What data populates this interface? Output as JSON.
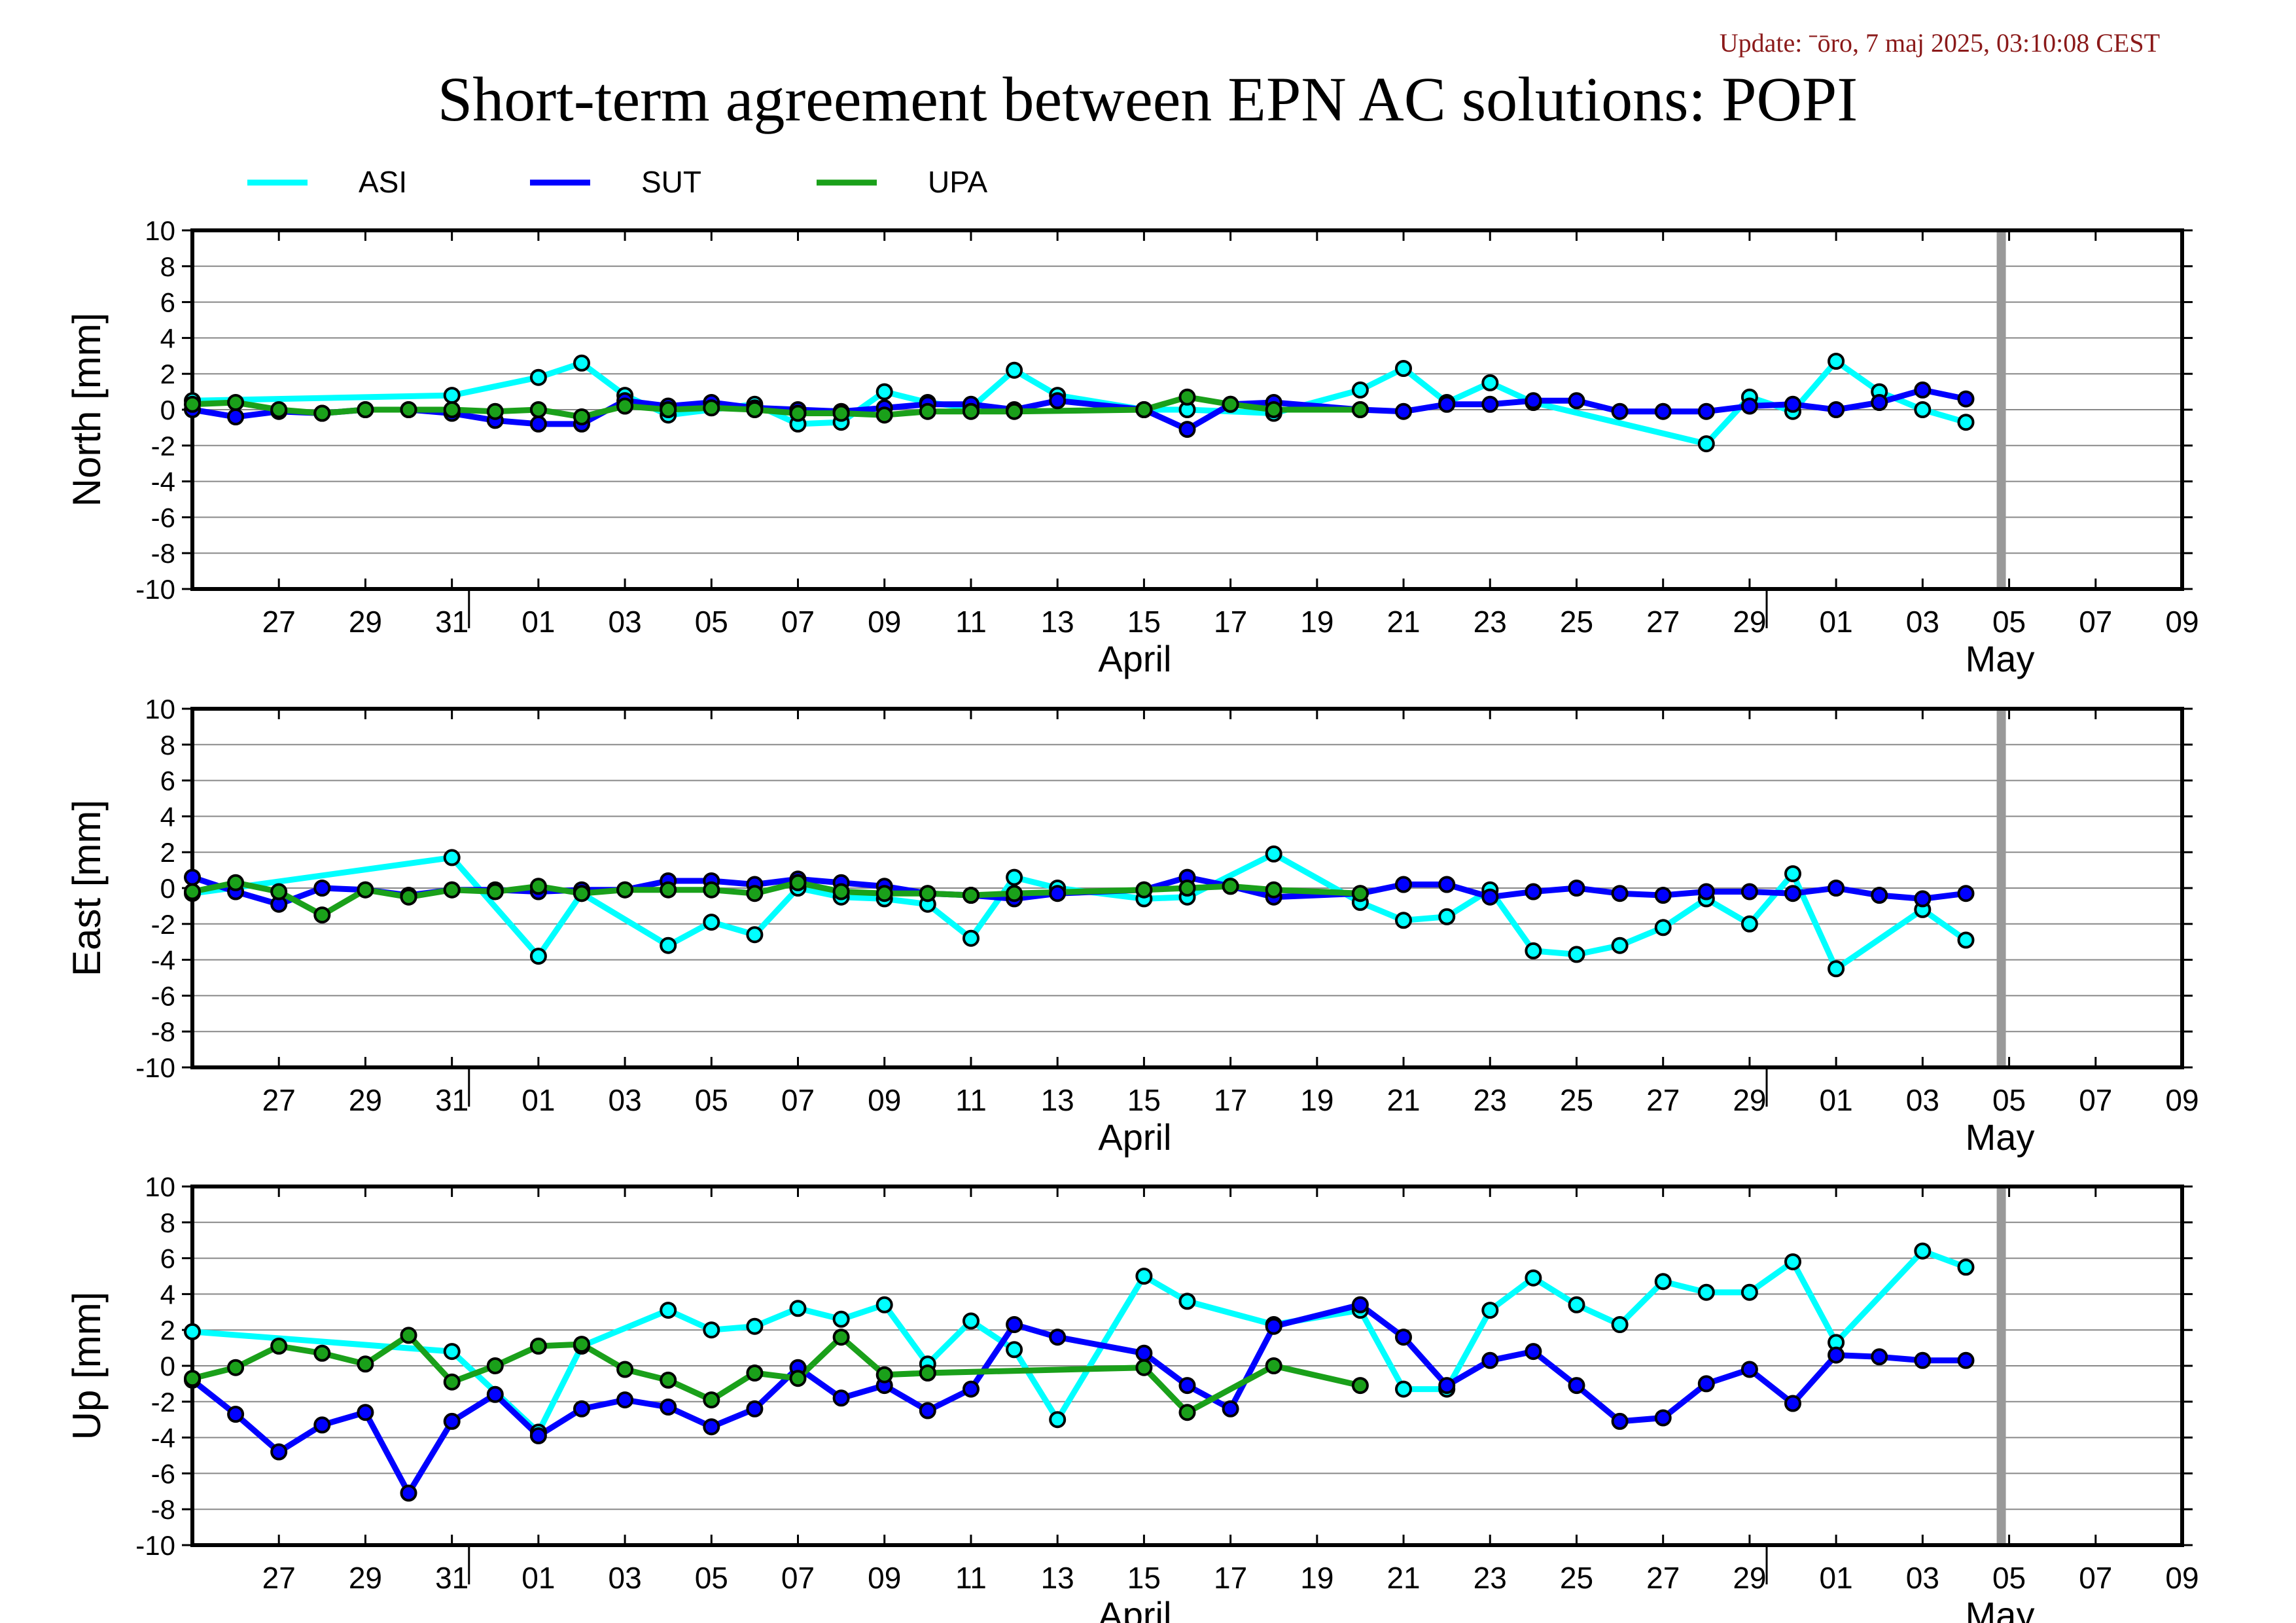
{
  "update_text": "Update: ˉōro, 7 maj 2025, 03:10:08 CEST",
  "colors": {
    "update_text": "#8b1a1a",
    "ASI": "#00ffff",
    "SUT": "#0000ff",
    "UPA": "#1aa01a",
    "axis": "#000000",
    "grid": "#888888",
    "current_day_bar": "#999999",
    "marker_edge": "#000000"
  },
  "chart_data": {
    "type": "line",
    "title": "Short-term agreement between EPN AC solutions: POPI",
    "legend": [
      "ASI",
      "SUT",
      "UPA"
    ],
    "legend_placement": "top-left",
    "grid": true,
    "x_range": [
      "2025-03-25",
      "2025-05-10"
    ],
    "current_day_marker": "2025-05-06",
    "x_tick_labels": [
      "27",
      "29",
      "31",
      "01",
      "03",
      "05",
      "07",
      "09",
      "11",
      "13",
      "15",
      "17",
      "19",
      "21",
      "23",
      "25",
      "27",
      "29",
      "01",
      "03",
      "05",
      "07",
      "09"
    ],
    "x_month_labels": [
      {
        "label": "April",
        "date": "2025-04-16"
      },
      {
        "label": "May",
        "date": "2025-05-06"
      }
    ],
    "panels": [
      {
        "name": "north",
        "ylabel": "North [mm]",
        "ylim": [
          -10,
          10
        ],
        "yticks": [
          10,
          8,
          6,
          4,
          2,
          0,
          -2,
          -4,
          -6,
          -8,
          -10
        ],
        "series": [
          {
            "name": "ASI",
            "x": [
              "2025-03-25",
              "2025-03-31",
              "2025-04-02",
              "2025-04-03",
              "2025-04-04",
              "2025-04-05",
              "2025-04-07",
              "2025-04-08",
              "2025-04-09",
              "2025-04-10",
              "2025-04-11",
              "2025-04-12",
              "2025-04-13",
              "2025-04-14",
              "2025-04-16",
              "2025-04-17",
              "2025-04-19",
              "2025-04-21",
              "2025-04-22",
              "2025-04-23",
              "2025-04-24",
              "2025-04-25",
              "2025-04-29",
              "2025-04-30",
              "2025-05-01",
              "2025-05-02",
              "2025-05-03",
              "2025-05-04",
              "2025-05-05"
            ],
            "y": [
              0.5,
              0.8,
              1.8,
              2.6,
              0.8,
              -0.3,
              0.3,
              -0.8,
              -0.7,
              1.0,
              0.4,
              0.1,
              2.2,
              0.8,
              0.0,
              0.0,
              -0.2,
              1.1,
              2.3,
              0.4,
              1.5,
              0.4,
              -1.9,
              0.7,
              -0.1,
              2.7,
              1.0,
              0.0,
              -0.7
            ]
          },
          {
            "name": "SUT",
            "x": [
              "2025-03-25",
              "2025-03-26",
              "2025-03-27",
              "2025-03-28",
              "2025-03-29",
              "2025-03-30",
              "2025-03-31",
              "2025-04-01",
              "2025-04-02",
              "2025-04-03",
              "2025-04-04",
              "2025-04-05",
              "2025-04-06",
              "2025-04-07",
              "2025-04-08",
              "2025-04-09",
              "2025-04-10",
              "2025-04-11",
              "2025-04-12",
              "2025-04-13",
              "2025-04-14",
              "2025-04-16",
              "2025-04-17",
              "2025-04-18",
              "2025-04-19",
              "2025-04-21",
              "2025-04-22",
              "2025-04-23",
              "2025-04-24",
              "2025-04-25",
              "2025-04-26",
              "2025-04-27",
              "2025-04-28",
              "2025-04-29",
              "2025-04-30",
              "2025-05-01",
              "2025-05-02",
              "2025-05-03",
              "2025-05-04",
              "2025-05-05"
            ],
            "y": [
              0.0,
              -0.4,
              -0.1,
              -0.2,
              0.0,
              0.0,
              -0.2,
              -0.6,
              -0.8,
              -0.8,
              0.5,
              0.2,
              0.4,
              0.1,
              0.0,
              -0.1,
              0.1,
              0.3,
              0.3,
              0.0,
              0.5,
              0.0,
              -1.1,
              0.3,
              0.4,
              0.0,
              -0.1,
              0.3,
              0.3,
              0.5,
              0.5,
              -0.1,
              -0.1,
              -0.1,
              0.2,
              0.3,
              0.0,
              0.4,
              1.1,
              0.6
            ]
          },
          {
            "name": "UPA",
            "x": [
              "2025-03-25",
              "2025-03-26",
              "2025-03-27",
              "2025-03-28",
              "2025-03-29",
              "2025-03-30",
              "2025-03-31",
              "2025-04-01",
              "2025-04-02",
              "2025-04-03",
              "2025-04-04",
              "2025-04-05",
              "2025-04-06",
              "2025-04-07",
              "2025-04-08",
              "2025-04-09",
              "2025-04-10",
              "2025-04-11",
              "2025-04-12",
              "2025-04-13",
              "2025-04-16",
              "2025-04-17",
              "2025-04-18",
              "2025-04-19",
              "2025-04-21"
            ],
            "y": [
              0.3,
              0.4,
              0.0,
              -0.2,
              0.0,
              0.0,
              0.0,
              -0.1,
              0.0,
              -0.4,
              0.2,
              0.0,
              0.1,
              0.0,
              -0.2,
              -0.2,
              -0.3,
              -0.1,
              -0.1,
              -0.1,
              0.0,
              0.7,
              0.3,
              0.0,
              0.0
            ]
          }
        ]
      },
      {
        "name": "east",
        "ylabel": "East [mm]",
        "ylim": [
          -10,
          10
        ],
        "yticks": [
          10,
          8,
          6,
          4,
          2,
          0,
          -2,
          -4,
          -6,
          -8,
          -10
        ],
        "series": [
          {
            "name": "ASI",
            "x": [
              "2025-03-25",
              "2025-03-31",
              "2025-04-02",
              "2025-04-03",
              "2025-04-05",
              "2025-04-06",
              "2025-04-07",
              "2025-04-08",
              "2025-04-09",
              "2025-04-10",
              "2025-04-11",
              "2025-04-12",
              "2025-04-13",
              "2025-04-14",
              "2025-04-16",
              "2025-04-17",
              "2025-04-19",
              "2025-04-21",
              "2025-04-22",
              "2025-04-23",
              "2025-04-24",
              "2025-04-25",
              "2025-04-26",
              "2025-04-27",
              "2025-04-28",
              "2025-04-29",
              "2025-04-30",
              "2025-05-01",
              "2025-05-02",
              "2025-05-04",
              "2025-05-05"
            ],
            "y": [
              -0.3,
              1.7,
              -3.8,
              -0.3,
              -3.2,
              -1.9,
              -2.6,
              0.0,
              -0.5,
              -0.6,
              -0.9,
              -2.8,
              0.6,
              0.0,
              -0.6,
              -0.5,
              1.9,
              -0.8,
              -1.8,
              -1.6,
              -0.1,
              -3.5,
              -3.7,
              -3.2,
              -2.2,
              -0.6,
              -2.0,
              0.8,
              -4.5,
              -1.2,
              -2.9
            ]
          },
          {
            "name": "SUT",
            "x": [
              "2025-03-25",
              "2025-03-26",
              "2025-03-27",
              "2025-03-28",
              "2025-03-29",
              "2025-03-30",
              "2025-03-31",
              "2025-04-01",
              "2025-04-02",
              "2025-04-03",
              "2025-04-04",
              "2025-04-05",
              "2025-04-06",
              "2025-04-07",
              "2025-04-08",
              "2025-04-09",
              "2025-04-10",
              "2025-04-11",
              "2025-04-12",
              "2025-04-13",
              "2025-04-14",
              "2025-04-16",
              "2025-04-17",
              "2025-04-18",
              "2025-04-19",
              "2025-04-21",
              "2025-04-22",
              "2025-04-23",
              "2025-04-24",
              "2025-04-25",
              "2025-04-26",
              "2025-04-27",
              "2025-04-28",
              "2025-04-29",
              "2025-04-30",
              "2025-05-01",
              "2025-05-02",
              "2025-05-03",
              "2025-05-04",
              "2025-05-05"
            ],
            "y": [
              0.6,
              -0.2,
              -0.9,
              0.0,
              -0.1,
              -0.4,
              -0.1,
              -0.1,
              -0.2,
              -0.1,
              -0.1,
              0.4,
              0.4,
              0.2,
              0.5,
              0.3,
              0.1,
              -0.3,
              -0.4,
              -0.6,
              -0.3,
              -0.1,
              0.6,
              0.1,
              -0.5,
              -0.3,
              0.2,
              0.2,
              -0.5,
              -0.2,
              0.0,
              -0.3,
              -0.4,
              -0.2,
              -0.2,
              -0.3,
              0.0,
              -0.4,
              -0.6,
              -0.3
            ]
          },
          {
            "name": "UPA",
            "x": [
              "2025-03-25",
              "2025-03-26",
              "2025-03-27",
              "2025-03-28",
              "2025-03-29",
              "2025-03-30",
              "2025-03-31",
              "2025-04-01",
              "2025-04-02",
              "2025-04-03",
              "2025-04-04",
              "2025-04-05",
              "2025-04-06",
              "2025-04-07",
              "2025-04-08",
              "2025-04-09",
              "2025-04-10",
              "2025-04-11",
              "2025-04-12",
              "2025-04-13",
              "2025-04-16",
              "2025-04-17",
              "2025-04-18",
              "2025-04-19",
              "2025-04-21"
            ],
            "y": [
              -0.2,
              0.3,
              -0.2,
              -1.5,
              -0.1,
              -0.5,
              -0.1,
              -0.2,
              0.1,
              -0.3,
              -0.1,
              -0.1,
              -0.1,
              -0.3,
              0.3,
              -0.2,
              -0.3,
              -0.3,
              -0.4,
              -0.3,
              -0.1,
              0.0,
              0.1,
              -0.1,
              -0.3
            ]
          }
        ]
      },
      {
        "name": "up",
        "ylabel": "Up [mm]",
        "ylim": [
          -10,
          10
        ],
        "yticks": [
          10,
          8,
          6,
          4,
          2,
          0,
          -2,
          -4,
          -6,
          -8,
          -10
        ],
        "series": [
          {
            "name": "ASI",
            "x": [
              "2025-03-25",
              "2025-03-31",
              "2025-04-02",
              "2025-04-03",
              "2025-04-05",
              "2025-04-06",
              "2025-04-07",
              "2025-04-08",
              "2025-04-09",
              "2025-04-10",
              "2025-04-11",
              "2025-04-12",
              "2025-04-13",
              "2025-04-14",
              "2025-04-16",
              "2025-04-17",
              "2025-04-19",
              "2025-04-21",
              "2025-04-22",
              "2025-04-23",
              "2025-04-24",
              "2025-04-25",
              "2025-04-26",
              "2025-04-27",
              "2025-04-28",
              "2025-04-29",
              "2025-04-30",
              "2025-05-01",
              "2025-05-02",
              "2025-05-04",
              "2025-05-05"
            ],
            "y": [
              1.9,
              0.8,
              -3.7,
              1.1,
              3.1,
              2.0,
              2.2,
              3.2,
              2.6,
              3.4,
              0.1,
              2.5,
              0.9,
              -3.0,
              5.0,
              3.6,
              2.3,
              3.1,
              -1.3,
              -1.3,
              3.1,
              4.9,
              3.4,
              2.3,
              4.7,
              4.1,
              4.1,
              5.8,
              1.3,
              6.4,
              5.5
            ]
          },
          {
            "name": "SUT",
            "x": [
              "2025-03-25",
              "2025-03-26",
              "2025-03-27",
              "2025-03-28",
              "2025-03-29",
              "2025-03-30",
              "2025-03-31",
              "2025-04-01",
              "2025-04-02",
              "2025-04-03",
              "2025-04-04",
              "2025-04-05",
              "2025-04-06",
              "2025-04-07",
              "2025-04-08",
              "2025-04-09",
              "2025-04-10",
              "2025-04-11",
              "2025-04-12",
              "2025-04-13",
              "2025-04-14",
              "2025-04-16",
              "2025-04-17",
              "2025-04-18",
              "2025-04-19",
              "2025-04-21",
              "2025-04-22",
              "2025-04-23",
              "2025-04-24",
              "2025-04-25",
              "2025-04-26",
              "2025-04-27",
              "2025-04-28",
              "2025-04-29",
              "2025-04-30",
              "2025-05-01",
              "2025-05-02",
              "2025-05-03",
              "2025-05-04",
              "2025-05-05"
            ],
            "y": [
              -0.8,
              -2.7,
              -4.8,
              -3.3,
              -2.6,
              -7.1,
              -3.1,
              -1.6,
              -3.9,
              -2.4,
              -1.9,
              -2.3,
              -3.4,
              -2.4,
              -0.1,
              -1.8,
              -1.1,
              -2.5,
              -1.3,
              2.3,
              1.6,
              0.7,
              -1.1,
              -2.4,
              2.2,
              3.4,
              1.6,
              -1.1,
              0.3,
              0.8,
              -1.1,
              -3.1,
              -2.9,
              -1.0,
              -0.2,
              -2.1,
              0.6,
              0.5,
              0.3,
              0.3
            ]
          },
          {
            "name": "UPA",
            "x": [
              "2025-03-25",
              "2025-03-26",
              "2025-03-27",
              "2025-03-28",
              "2025-03-29",
              "2025-03-30",
              "2025-03-31",
              "2025-04-01",
              "2025-04-02",
              "2025-04-03",
              "2025-04-04",
              "2025-04-05",
              "2025-04-06",
              "2025-04-07",
              "2025-04-08",
              "2025-04-09",
              "2025-04-10",
              "2025-04-11",
              "2025-04-16",
              "2025-04-17",
              "2025-04-19",
              "2025-04-21"
            ],
            "y": [
              -0.7,
              -0.1,
              1.1,
              0.7,
              0.1,
              1.7,
              -0.9,
              0.0,
              1.1,
              1.2,
              -0.2,
              -0.8,
              -1.9,
              -0.4,
              -0.7,
              1.6,
              -0.5,
              -0.4,
              -0.1,
              -2.6,
              0.0,
              -1.1
            ]
          }
        ]
      }
    ]
  }
}
